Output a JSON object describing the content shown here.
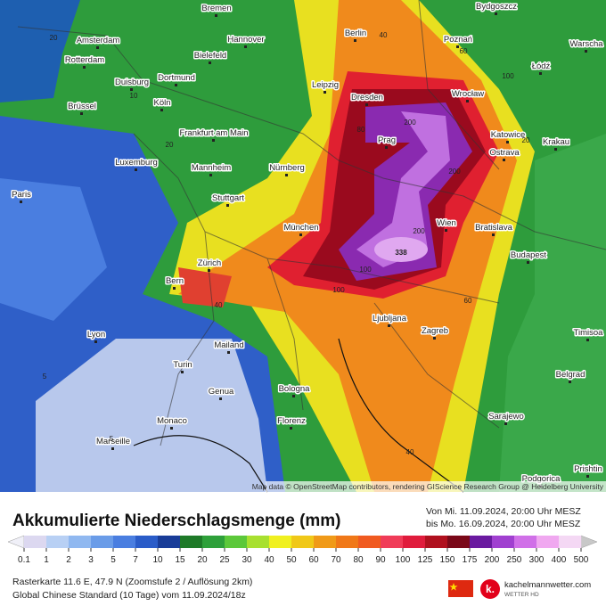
{
  "map": {
    "cities": [
      "Bremen",
      "Bydgoszcz",
      "Amsterdam",
      "Hannover",
      "Berlin",
      "Poznań",
      "Warscha",
      "Rotterdam",
      "Bielefeld",
      "Łódź",
      "Duisburg",
      "Dortmund",
      "Leipzig",
      "Dresden",
      "Wrocław",
      "Brüssel",
      "Köln",
      "Frankfurt am Main",
      "Prag",
      "Katowice",
      "Krakau",
      "Ostrava",
      "Luxemburg",
      "Mannheim",
      "Nürnberg",
      "Paris",
      "Stuttgart",
      "Wien",
      "Bratislava",
      "München",
      "Budapest",
      "Zürich",
      "Bern",
      "Ljubljana",
      "Zagreb",
      "Timisoa",
      "Lyon",
      "Mailand",
      "Turin",
      "Belgrad",
      "Genua",
      "Bologna",
      "Sarajewo",
      "Monaco",
      "Florenz",
      "Marseille",
      "Podgorica",
      "Prishtin"
    ],
    "contour_labels": [
      "338",
      "200",
      "200",
      "200",
      "100",
      "100",
      "100",
      "80",
      "60",
      "60",
      "40",
      "40",
      "40",
      "20",
      "20",
      "20",
      "10",
      "5",
      "5"
    ],
    "attribution": "Map data © OpenStreetMap contributors, rendering GIScience Research Group @ Heidelberg University"
  },
  "legend": {
    "title": "Akkumulierte Niederschlagsmenge (mm)",
    "period_from": "Von Mi. 11.09.2024, 20:00 Uhr MESZ",
    "period_to": "bis Mo. 16.09.2024, 20:00 Uhr MESZ",
    "ticks": [
      0.1,
      1,
      2,
      3,
      5,
      7,
      10,
      15,
      20,
      25,
      30,
      40,
      50,
      60,
      70,
      80,
      90,
      100,
      125,
      150,
      175,
      200,
      250,
      300,
      400,
      500
    ],
    "colors": [
      "#dcd8f0",
      "#b8d0f4",
      "#90b8f0",
      "#6a9ce8",
      "#4a7ee0",
      "#2a5cc8",
      "#183c98",
      "#1e7a28",
      "#2ea03a",
      "#5cc83a",
      "#a8e030",
      "#f0f020",
      "#f0c818",
      "#f09a18",
      "#f07818",
      "#f05a20",
      "#f03c58",
      "#e01c3c",
      "#b0101e",
      "#7a0818",
      "#6a1aa0",
      "#a040d0",
      "#d070e8",
      "#f0a8f0",
      "#f4d8f4"
    ],
    "under_color": "#f0f0f8",
    "over_color": "#c8c8c8"
  },
  "footer": {
    "raster_info": "Rasterkarte 11.6 E, 47.9 N (Zoomstufe 2 / Auflösung 2km)",
    "model_info": "Global Chinese Standard (10 Tage) vom 11.09.2024/18z",
    "logo": "k.",
    "brand": "kachelmannwetter.com",
    "brand_sub": "WETTER HD"
  }
}
